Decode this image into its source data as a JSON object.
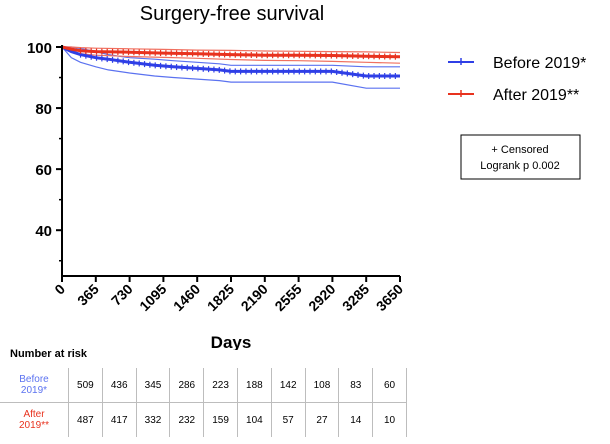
{
  "chart_data": {
    "type": "line",
    "title": "Surgery-free survival",
    "xlabel": "Days",
    "ylabel": "",
    "xlim": [
      0,
      3650
    ],
    "ylim": [
      25,
      100
    ],
    "x_ticks": [
      0,
      365,
      730,
      1095,
      1460,
      1825,
      2190,
      2555,
      2920,
      3285,
      3650
    ],
    "y_ticks": [
      40,
      60,
      80,
      100
    ],
    "legend_position": "top-right",
    "annotation": [
      "+ Censored",
      "Logrank p 0.002"
    ],
    "series": [
      {
        "name": "Before 2019*",
        "color": "#2f3fe6",
        "ci_color": "#5b72f0",
        "x": [
          0,
          100,
          200,
          365,
          500,
          730,
          1000,
          1200,
          1460,
          1700,
          1825,
          2190,
          2555,
          2920,
          3285,
          3650
        ],
        "y": [
          100,
          98.5,
          97.5,
          96.5,
          96,
          95,
          94,
          93.5,
          93,
          92.5,
          92,
          92,
          92,
          92,
          90.5,
          90.5
        ],
        "ci_upper": [
          100,
          100,
          99.5,
          98.5,
          97.5,
          96.5,
          96,
          95.5,
          95,
          94.5,
          94,
          94,
          94,
          94,
          93.5,
          93.5
        ],
        "ci_lower": [
          100,
          96.5,
          95,
          93.5,
          92.5,
          91.5,
          90.5,
          90,
          89.5,
          89,
          88.5,
          88.5,
          88.5,
          88.5,
          86.5,
          86.5
        ]
      },
      {
        "name": "After 2019**",
        "color": "#e8321e",
        "ci_color": "#f07060",
        "x": [
          0,
          100,
          200,
          365,
          730,
          1095,
          1460,
          1825,
          2190,
          2555,
          2920,
          3285,
          3650
        ],
        "y": [
          100,
          99.3,
          98.8,
          98.5,
          98.3,
          98,
          97.8,
          97.5,
          97.3,
          97.3,
          97.2,
          97,
          96.8
        ],
        "ci_upper": [
          100,
          100,
          99.8,
          99.6,
          99.4,
          99.2,
          99,
          98.9,
          98.7,
          98.6,
          98.5,
          98.4,
          98.2
        ],
        "ci_lower": [
          100,
          98.5,
          97.8,
          97.3,
          96.9,
          96.6,
          96.3,
          95.9,
          95.6,
          95.5,
          95.3,
          95,
          94.7
        ]
      }
    ]
  },
  "risk_table": {
    "title": "Number at risk",
    "rows": [
      {
        "label_line1": "Before",
        "label_line2": "2019*",
        "color": "#5b72f0",
        "values": [
          "509",
          "436",
          "345",
          "286",
          "223",
          "188",
          "142",
          "108",
          "83",
          "60"
        ]
      },
      {
        "label_line1": "After",
        "label_line2": "2019**",
        "color": "#e8321e",
        "values": [
          "487",
          "417",
          "332",
          "232",
          "159",
          "104",
          "57",
          "27",
          "14",
          "10"
        ]
      }
    ]
  }
}
